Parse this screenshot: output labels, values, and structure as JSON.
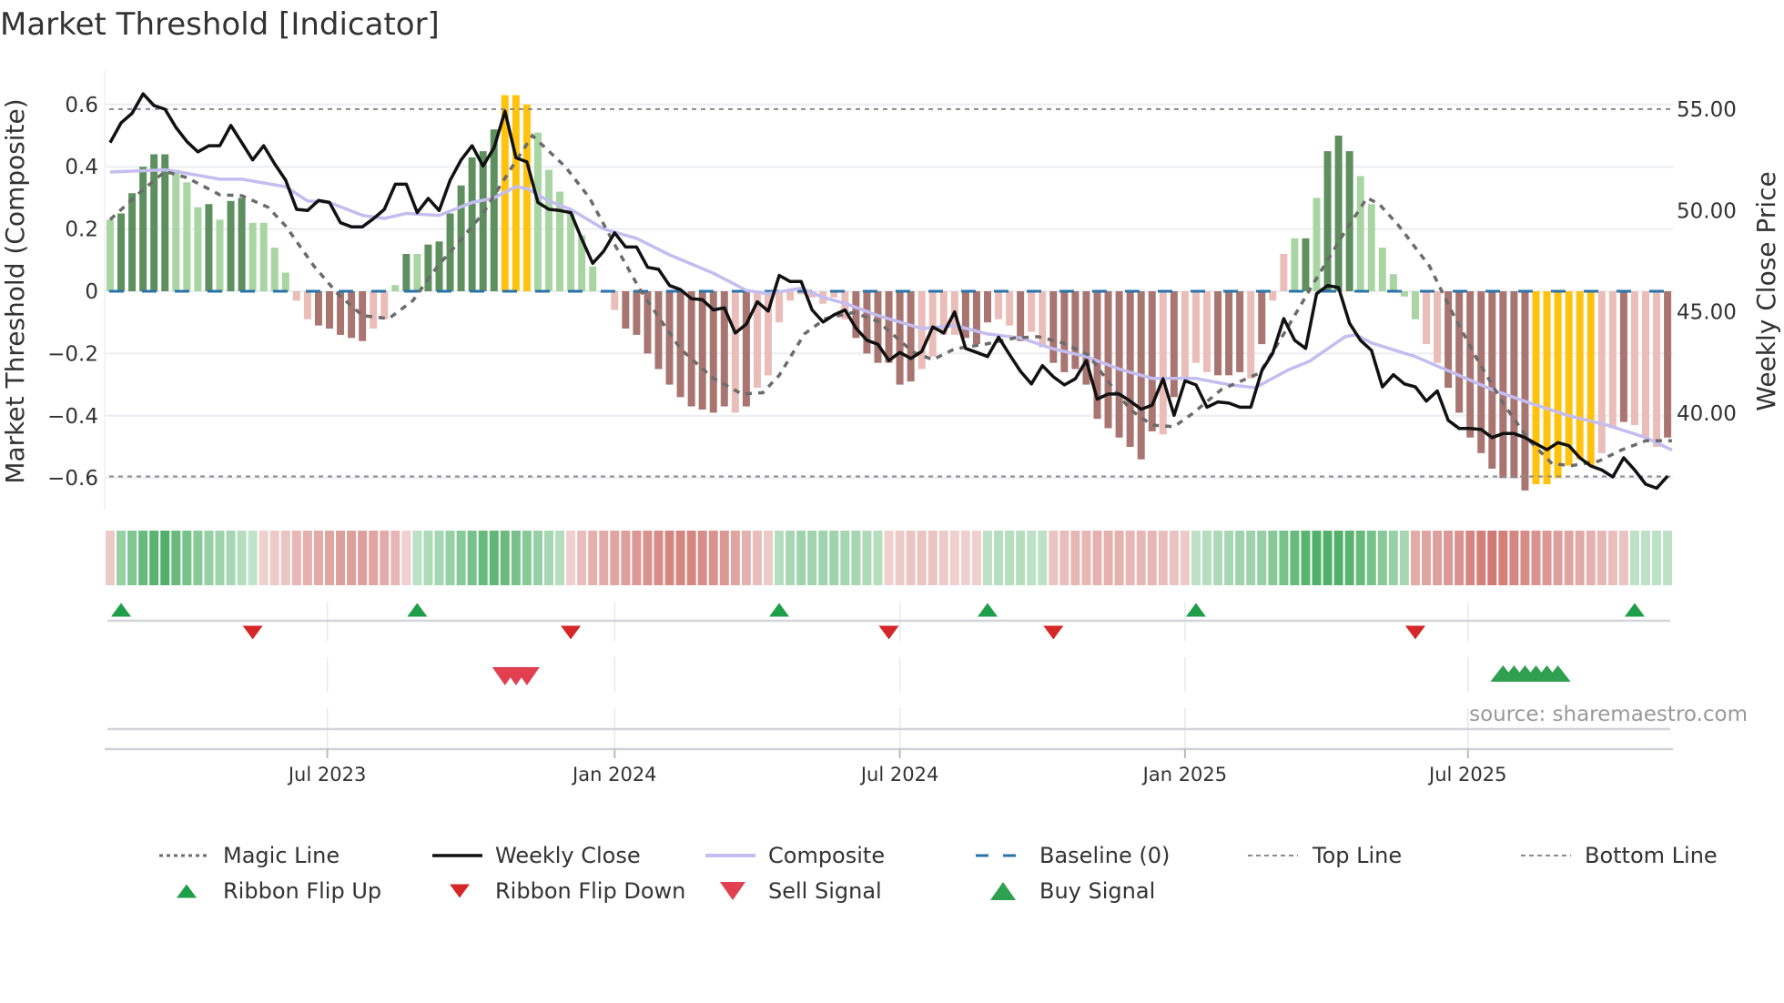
{
  "chart_data": {
    "type": "bar",
    "title": "Market Threshold [Indicator]",
    "ylabel": "Market Threshold (Composite)",
    "y2label": "Weekly Close Price",
    "ylim": [
      -0.7,
      0.7
    ],
    "y2lim": [
      34.4,
      57.4
    ],
    "yticks": [
      "0.6",
      "0.4",
      "0.2",
      "0",
      "−0.2",
      "−0.4",
      "−0.6"
    ],
    "ytick_values": [
      0.6,
      0.4,
      0.2,
      0,
      -0.2,
      -0.4,
      -0.6
    ],
    "y2ticks": [
      "55.00",
      "50.00",
      "45.00",
      "40.00"
    ],
    "y2tick_values": [
      55,
      50,
      45,
      40
    ],
    "xticks": [
      {
        "label": "Jul 2023",
        "week": 19.8
      },
      {
        "label": "Jan 2024",
        "week": 46
      },
      {
        "label": "Jul 2024",
        "week": 72
      },
      {
        "label": "Jan 2025",
        "week": 98
      },
      {
        "label": "Jul 2025",
        "week": 123.8
      }
    ],
    "top_line": 0.585,
    "bottom_line": -0.595,
    "baseline": 0,
    "composite_bars": [
      0.23,
      0.25,
      0.315,
      0.4,
      0.44,
      0.44,
      0.39,
      0.35,
      0.27,
      0.28,
      0.23,
      0.29,
      0.3,
      0.22,
      0.22,
      0.14,
      0.06,
      -0.03,
      -0.09,
      -0.11,
      -0.12,
      -0.14,
      -0.15,
      -0.16,
      -0.12,
      -0.09,
      0.02,
      0.12,
      0.12,
      0.15,
      0.16,
      0.25,
      0.34,
      0.43,
      0.45,
      0.52,
      0.63,
      0.63,
      0.6,
      0.51,
      0.39,
      0.32,
      0.25,
      0.18,
      0.08,
      -0.005,
      -0.06,
      -0.12,
      -0.14,
      -0.2,
      -0.25,
      -0.3,
      -0.34,
      -0.37,
      -0.38,
      -0.39,
      -0.37,
      -0.39,
      -0.37,
      -0.31,
      -0.27,
      -0.1,
      -0.03,
      -0.01,
      -0.02,
      -0.04,
      -0.02,
      -0.09,
      -0.15,
      -0.2,
      -0.23,
      -0.23,
      -0.3,
      -0.29,
      -0.25,
      -0.21,
      -0.14,
      -0.14,
      -0.15,
      -0.17,
      -0.1,
      -0.09,
      -0.11,
      -0.16,
      -0.13,
      -0.18,
      -0.23,
      -0.26,
      -0.25,
      -0.3,
      -0.41,
      -0.44,
      -0.47,
      -0.5,
      -0.54,
      -0.45,
      -0.46,
      -0.34,
      -0.28,
      -0.23,
      -0.26,
      -0.27,
      -0.27,
      -0.26,
      -0.28,
      -0.17,
      -0.03,
      0.12,
      0.17,
      0.17,
      0.3,
      0.45,
      0.5,
      0.45,
      0.37,
      0.28,
      0.14,
      0.055,
      -0.017,
      -0.09,
      -0.17,
      -0.23,
      -0.31,
      -0.39,
      -0.47,
      -0.52,
      -0.57,
      -0.6,
      -0.6,
      -0.64,
      -0.62,
      -0.62,
      -0.6,
      -0.56,
      -0.54,
      -0.56,
      -0.52,
      -0.44,
      -0.42,
      -0.43,
      -0.47,
      -0.5,
      -0.47
    ],
    "bar_state": "gGGGGGgggGgGGgggg rRRRRRrrgGgGGGGGGGYYYgggggg rRRRRRRRRRRrRrrrrrrrrrRRRRRRrrrrRRRrrRrrRRRRRRRRRRrRrrrRRRrRrrgGgGGGgggggg rRRRRRRRRYYYYYYrrRrrrRRRr",
    "weekly_close": [
      53.35,
      54.33,
      54.8,
      55.76,
      55.18,
      55.0,
      54.1,
      53.4,
      52.9,
      53.2,
      53.2,
      54.2,
      53.35,
      52.5,
      53.2,
      52.3,
      51.5,
      50.06,
      50.0,
      50.5,
      50.4,
      49.4,
      49.2,
      49.2,
      49.6,
      50.06,
      51.3,
      51.3,
      49.9,
      50.6,
      50.0,
      51.5,
      52.5,
      53.2,
      52.2,
      53.1,
      54.9,
      52.6,
      52.4,
      50.4,
      50.06,
      50.0,
      49.9,
      48.6,
      47.4,
      48.0,
      48.9,
      48.2,
      48.2,
      47.2,
      47.1,
      46.3,
      46.1,
      45.65,
      45.6,
      45.1,
      45.2,
      43.96,
      44.4,
      45.5,
      45.04,
      46.8,
      46.5,
      46.5,
      45.1,
      44.5,
      44.85,
      45.1,
      44.2,
      43.6,
      43.4,
      42.6,
      43.0,
      42.7,
      43.05,
      44.26,
      43.96,
      45.0,
      43.2,
      43.0,
      42.8,
      43.75,
      42.9,
      42.07,
      41.45,
      42.35,
      41.8,
      41.4,
      41.7,
      42.6,
      40.7,
      40.95,
      40.95,
      40.6,
      40.2,
      40.4,
      41.7,
      39.9,
      41.6,
      41.4,
      40.3,
      40.56,
      40.5,
      40.3,
      40.3,
      42.1,
      42.97,
      44.67,
      43.6,
      43.2,
      45.9,
      46.3,
      46.2,
      44.44,
      43.6,
      43.1,
      41.3,
      41.9,
      41.45,
      41.3,
      40.6,
      41.1,
      39.65,
      39.25,
      39.25,
      39.2,
      38.8,
      39.0,
      39.0,
      38.8,
      38.5,
      38.2,
      38.55,
      38.4,
      37.8,
      37.4,
      37.2,
      36.86,
      37.8,
      37.2,
      36.5,
      36.3,
      36.9
    ],
    "composite_line": [
      [
        0,
        0.383
      ],
      [
        5,
        0.39
      ],
      [
        6,
        0.385
      ],
      [
        10,
        0.36
      ],
      [
        12,
        0.36
      ],
      [
        16,
        0.336
      ],
      [
        18,
        0.29
      ],
      [
        20,
        0.285
      ],
      [
        23,
        0.244
      ],
      [
        25,
        0.234
      ],
      [
        27,
        0.25
      ],
      [
        30,
        0.244
      ],
      [
        33,
        0.285
      ],
      [
        35,
        0.3
      ],
      [
        37,
        0.336
      ],
      [
        38,
        0.33
      ],
      [
        40,
        0.29
      ],
      [
        42,
        0.263
      ],
      [
        45,
        0.2
      ],
      [
        48,
        0.17
      ],
      [
        51,
        0.117
      ],
      [
        55,
        0.058
      ],
      [
        58,
        0.003
      ],
      [
        60,
        -0.008
      ],
      [
        63,
        0.01
      ],
      [
        65,
        -0.02
      ],
      [
        67,
        -0.039
      ],
      [
        70,
        -0.078
      ],
      [
        74,
        -0.12
      ],
      [
        77,
        -0.11
      ],
      [
        80,
        -0.137
      ],
      [
        83,
        -0.15
      ],
      [
        86,
        -0.185
      ],
      [
        89,
        -0.21
      ],
      [
        92,
        -0.25
      ],
      [
        95,
        -0.28
      ],
      [
        99,
        -0.28
      ],
      [
        102,
        -0.3
      ],
      [
        104.4,
        -0.31
      ],
      [
        107.4,
        -0.253
      ],
      [
        109.4,
        -0.224
      ],
      [
        112.6,
        -0.146
      ],
      [
        113.6,
        -0.14
      ],
      [
        115,
        -0.166
      ],
      [
        119,
        -0.21
      ],
      [
        122.5,
        -0.263
      ],
      [
        126,
        -0.316
      ],
      [
        129.5,
        -0.36
      ],
      [
        133,
        -0.4
      ],
      [
        136.5,
        -0.43
      ],
      [
        140,
        -0.47
      ],
      [
        142.4,
        -0.51
      ]
    ],
    "magic_line": [
      [
        0,
        0.23
      ],
      [
        2.8,
        0.32
      ],
      [
        5,
        0.385
      ],
      [
        7,
        0.365
      ],
      [
        10,
        0.31
      ],
      [
        12,
        0.307
      ],
      [
        14.4,
        0.27
      ],
      [
        16,
        0.21
      ],
      [
        18.6,
        0.08
      ],
      [
        20.8,
        -0.01
      ],
      [
        23,
        -0.078
      ],
      [
        25.4,
        -0.088
      ],
      [
        27.6,
        -0.03
      ],
      [
        29.8,
        0.078
      ],
      [
        32,
        0.166
      ],
      [
        34,
        0.25
      ],
      [
        36.3,
        0.38
      ],
      [
        38.5,
        0.5
      ],
      [
        41.5,
        0.4
      ],
      [
        43.7,
        0.3
      ],
      [
        46,
        0.15
      ],
      [
        48.4,
        0.0
      ],
      [
        52,
        -0.185
      ],
      [
        55,
        -0.28
      ],
      [
        57.6,
        -0.33
      ],
      [
        59.5,
        -0.326
      ],
      [
        61,
        -0.27
      ],
      [
        63.3,
        -0.137
      ],
      [
        65.2,
        -0.088
      ],
      [
        67.8,
        -0.068
      ],
      [
        70,
        -0.097
      ],
      [
        73.2,
        -0.195
      ],
      [
        75,
        -0.22
      ],
      [
        77,
        -0.185
      ],
      [
        79.8,
        -0.17
      ],
      [
        82.5,
        -0.15
      ],
      [
        84.6,
        -0.146
      ],
      [
        86.9,
        -0.166
      ],
      [
        89.2,
        -0.205
      ],
      [
        91,
        -0.29
      ],
      [
        93,
        -0.38
      ],
      [
        95,
        -0.43
      ],
      [
        97,
        -0.435
      ],
      [
        98.8,
        -0.39
      ],
      [
        101.3,
        -0.316
      ],
      [
        104.8,
        -0.263
      ],
      [
        107,
        -0.137
      ],
      [
        109.8,
        0.03
      ],
      [
        112.3,
        0.175
      ],
      [
        114.6,
        0.3
      ],
      [
        115.7,
        0.28
      ],
      [
        117.5,
        0.21
      ],
      [
        120.3,
        0.08
      ],
      [
        122.4,
        -0.07
      ],
      [
        124.5,
        -0.21
      ],
      [
        127,
        -0.36
      ],
      [
        129.4,
        -0.48
      ],
      [
        131.5,
        -0.555
      ],
      [
        133.3,
        -0.56
      ],
      [
        135.7,
        -0.546
      ],
      [
        137.8,
        -0.51
      ],
      [
        140,
        -0.48
      ],
      [
        142.4,
        -0.48
      ]
    ],
    "ribbon": [
      -0.15,
      0.4,
      0.55,
      0.7,
      0.8,
      0.85,
      0.7,
      0.6,
      0.5,
      0.4,
      0.35,
      0.3,
      0.2,
      0.12,
      -0.1,
      -0.15,
      -0.2,
      -0.3,
      -0.35,
      -0.4,
      -0.45,
      -0.5,
      -0.5,
      -0.5,
      -0.45,
      -0.4,
      -0.3,
      -0.1,
      0.15,
      0.25,
      0.3,
      0.4,
      0.5,
      0.6,
      0.7,
      0.75,
      0.7,
      0.6,
      0.5,
      0.4,
      0.3,
      0.2,
      -0.1,
      -0.25,
      -0.35,
      -0.4,
      -0.45,
      -0.5,
      -0.55,
      -0.6,
      -0.65,
      -0.7,
      -0.7,
      -0.7,
      -0.65,
      -0.6,
      -0.55,
      -0.45,
      -0.35,
      -0.25,
      -0.15,
      0.2,
      0.3,
      0.35,
      0.35,
      0.35,
      0.35,
      0.3,
      0.3,
      0.25,
      0.2,
      -0.1,
      -0.15,
      -0.2,
      -0.2,
      -0.2,
      -0.15,
      -0.1,
      -0.1,
      -0.1,
      0.15,
      0.2,
      0.2,
      0.2,
      0.15,
      0.15,
      -0.2,
      -0.25,
      -0.3,
      -0.3,
      -0.35,
      -0.35,
      -0.35,
      -0.3,
      -0.3,
      -0.3,
      -0.25,
      -0.2,
      -0.15,
      0.15,
      0.2,
      0.25,
      0.3,
      0.35,
      0.35,
      0.4,
      0.5,
      0.6,
      0.7,
      0.8,
      0.85,
      0.85,
      0.85,
      0.8,
      0.7,
      0.6,
      0.5,
      0.4,
      0.3,
      -0.4,
      -0.45,
      -0.5,
      -0.55,
      -0.6,
      -0.7,
      -0.75,
      -0.8,
      -0.75,
      -0.7,
      -0.65,
      -0.6,
      -0.55,
      -0.5,
      -0.45,
      -0.4,
      -0.35,
      -0.3,
      -0.25,
      -0.2,
      0.15,
      0.15,
      0.15,
      0.15
    ],
    "ribbon_flip_up": [
      1,
      28,
      61,
      80,
      99,
      139
    ],
    "ribbon_flip_down": [
      13,
      42,
      71,
      86,
      119
    ],
    "sell_signal": [
      36,
      37,
      38
    ],
    "buy_signal": [
      127,
      128,
      129,
      130,
      131,
      132
    ],
    "legend": [
      {
        "label": "Magic Line",
        "kind": "dotted",
        "color": "#6b6b6b"
      },
      {
        "label": "Weekly Close",
        "kind": "solid",
        "color": "#111111"
      },
      {
        "label": "Composite",
        "kind": "thick",
        "color": "#c3bdf0"
      },
      {
        "label": "Baseline (0)",
        "kind": "dashed",
        "color": "#2a73a8"
      },
      {
        "label": "Top Line",
        "kind": "dotted-thin",
        "color": "#8a8a8a"
      },
      {
        "label": "Bottom Line",
        "kind": "dotted-thin",
        "color": "#8a8a8a"
      },
      {
        "label": "Ribbon Flip Up",
        "kind": "tri-up",
        "color": "#1e9e48"
      },
      {
        "label": "Ribbon Flip Down",
        "kind": "tri-down",
        "color": "#d62728"
      },
      {
        "label": "Sell Signal",
        "kind": "tri-down-big",
        "color": "#e0404f"
      },
      {
        "label": "Buy Signal",
        "kind": "tri-up-big",
        "color": "#2ea04f"
      }
    ],
    "legend_placement": "bottom",
    "source": "source: sharemaestro.com",
    "colors": {
      "strong_pos": "#5e8f5e",
      "weak_pos": "#a9d5a3",
      "extreme": "#ffc20e",
      "strong_neg": "#a87571",
      "weak_neg": "#ebbdb8",
      "ribbon_pos": "#3aa655",
      "ribbon_neg": "#c8615b"
    }
  }
}
